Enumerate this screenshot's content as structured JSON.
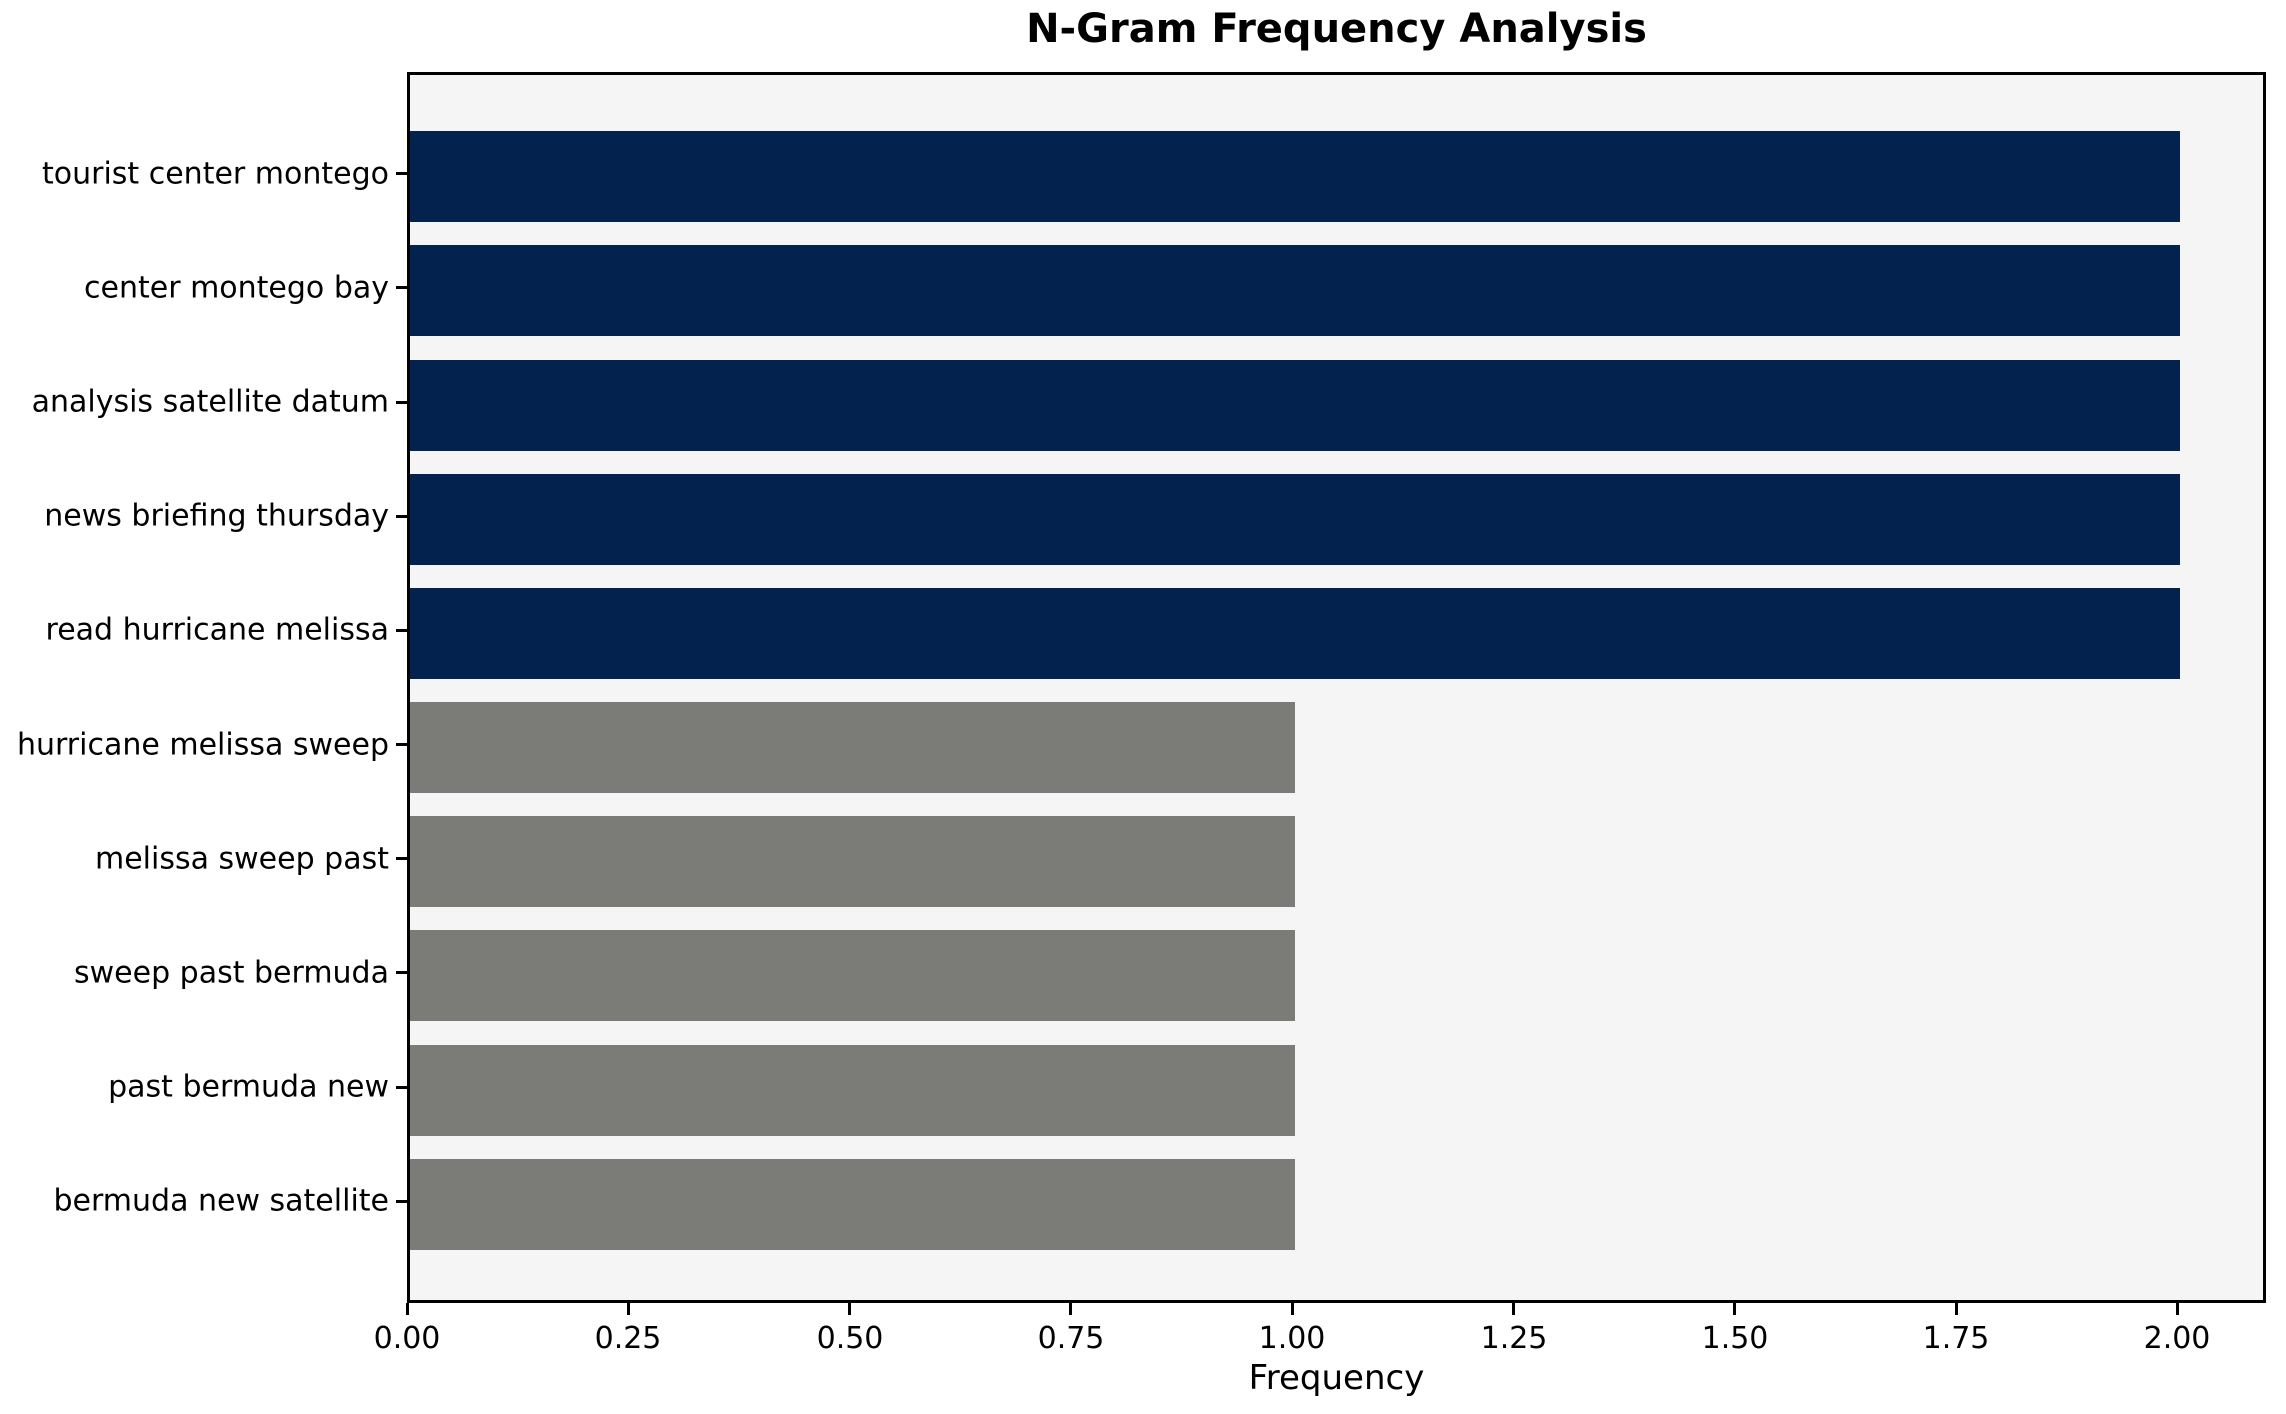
{
  "chart_data": {
    "type": "bar",
    "orientation": "horizontal",
    "title": "N-Gram Frequency Analysis",
    "xlabel": "Frequency",
    "ylabel": "",
    "categories": [
      "tourist center montego",
      "center montego bay",
      "analysis satellite datum",
      "news briefing thursday",
      "read hurricane melissa",
      "hurricane melissa sweep",
      "melissa sweep past",
      "sweep past bermuda",
      "past bermuda new",
      "bermuda new satellite"
    ],
    "values": [
      2,
      2,
      2,
      2,
      2,
      1,
      1,
      1,
      1,
      1
    ],
    "bar_colors": [
      "#03224d",
      "#03224d",
      "#03224d",
      "#03224d",
      "#03224d",
      "#7b7b78",
      "#7b7b78",
      "#7b7b78",
      "#7b7b78",
      "#7b7b78"
    ],
    "xlim": [
      0,
      2.1
    ],
    "xtick_values": [
      0,
      0.25,
      0.5,
      0.75,
      1.0,
      1.25,
      1.5,
      1.75,
      2.0
    ],
    "xtick_labels": [
      "0.00",
      "0.25",
      "0.50",
      "0.75",
      "1.00",
      "1.25",
      "1.50",
      "1.75",
      "2.00"
    ],
    "grid": false,
    "legend": "none",
    "plot_background": "#f5f5f6",
    "figure_background": "#ffffff",
    "spine_color": "#000000",
    "text_color": "#000000"
  }
}
